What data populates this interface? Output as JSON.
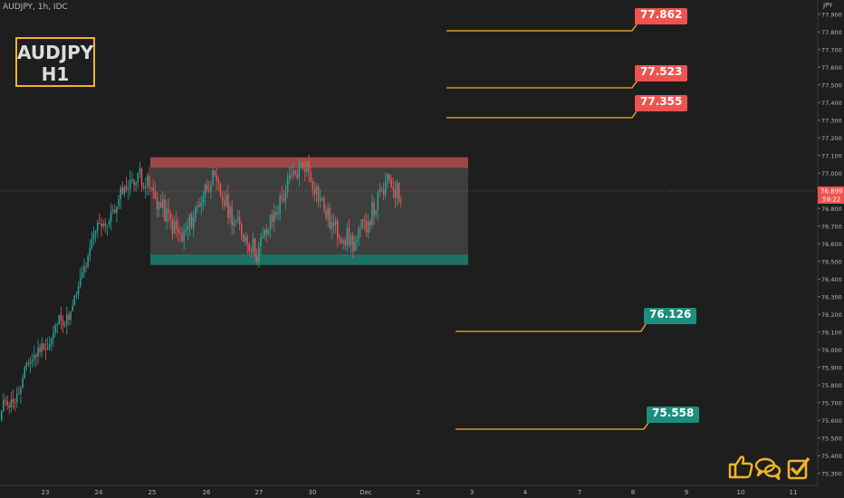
{
  "header": {
    "symbol_info": "AUDJPY, 1h, IDC",
    "currency": "JPY"
  },
  "title": {
    "line1": "AUDJPY",
    "line2": "H1"
  },
  "levels": [
    {
      "value": "77.862",
      "color": "#ef5350"
    },
    {
      "value": "77.523",
      "color": "#ef5350"
    },
    {
      "value": "77.355",
      "color": "#ef5350"
    },
    {
      "value": "76.126",
      "color": "#1a8f7d"
    },
    {
      "value": "75.558",
      "color": "#1a8f7d"
    }
  ],
  "current_price": {
    "value": "76.899",
    "countdown": "59:22"
  },
  "price_axis": [
    "77.900",
    "77.800",
    "77.700",
    "77.600",
    "77.500",
    "77.400",
    "77.300",
    "77.200",
    "77.100",
    "77.000",
    "76.800",
    "76.700",
    "76.600",
    "76.500",
    "76.400",
    "76.300",
    "76.200",
    "76.100",
    "76.000",
    "75.900",
    "75.800",
    "75.700",
    "75.600",
    "75.500",
    "75.400",
    "75.300"
  ],
  "time_axis": [
    "23",
    "24",
    "25",
    "26",
    "27",
    "30",
    "Dec",
    "2",
    "3",
    "4",
    "7",
    "8",
    "9",
    "10",
    "11"
  ],
  "range_box": {
    "top": 77.09,
    "resistance_bottom": 77.03,
    "support_top": 76.54,
    "bottom": 76.48
  },
  "icons": [
    "thumbs-up-icon",
    "chat-bubbles-icon",
    "checkmark-icon"
  ],
  "colors": {
    "bull": "#26a69a",
    "bear": "#ef5350",
    "line": "#f0b429"
  }
}
